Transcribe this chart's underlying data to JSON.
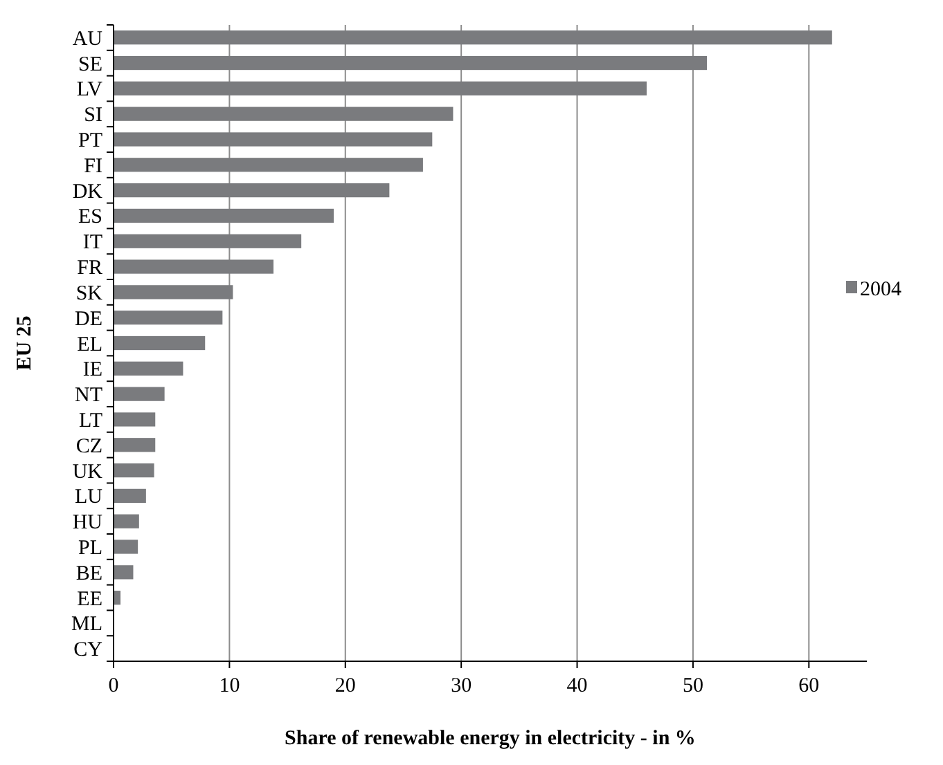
{
  "chart_data": {
    "type": "bar",
    "orientation": "horizontal",
    "xlabel": "Share of renewable energy in electricity  - in %",
    "ylabel": "EU 25",
    "categories": [
      "AU",
      "SE",
      "LV",
      "SI",
      "PT",
      "FI",
      "DK",
      "ES",
      "IT",
      "FR",
      "SK",
      "DE",
      "EL",
      "IE",
      "NT",
      "LT",
      "CZ",
      "UK",
      "LU",
      "HU",
      "PL",
      "BE",
      "EE",
      "ML",
      "CY"
    ],
    "series": [
      {
        "name": "2004",
        "color": "#7a7b7e",
        "values": [
          62.0,
          51.2,
          46.0,
          29.3,
          27.5,
          26.7,
          23.8,
          19.0,
          16.2,
          13.8,
          10.3,
          9.4,
          7.9,
          6.0,
          4.4,
          3.6,
          3.6,
          3.5,
          2.8,
          2.2,
          2.1,
          1.7,
          0.6,
          0,
          0
        ]
      }
    ],
    "xlim": [
      0,
      65
    ],
    "xticks": [
      0,
      10,
      20,
      30,
      40,
      50,
      60
    ],
    "grid": "x",
    "legend": "right"
  }
}
